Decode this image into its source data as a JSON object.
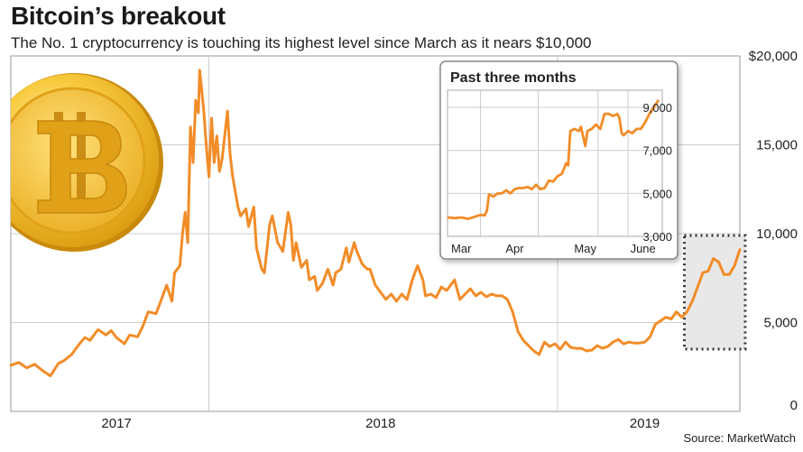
{
  "title": "Bitcoin’s breakout",
  "subtitle": "The No. 1 cryptocurrency is touching its highest level since March as it nears $10,000",
  "source": "Source: MarketWatch",
  "colors": {
    "line": "#f28c28",
    "grid": "#cccccc",
    "highlight": "#e8e8e8"
  },
  "icon": "bitcoin-coin-icon",
  "chart_data": [
    {
      "type": "line",
      "name": "Bitcoin price",
      "x_range": [
        2016.6,
        2019.36
      ],
      "ylim": [
        0,
        20000
      ],
      "y_ticks": [
        {
          "value": 0,
          "label": "0"
        },
        {
          "value": 5000,
          "label": "5,000"
        },
        {
          "value": 10000,
          "label": "10,000"
        },
        {
          "value": 15000,
          "label": "15,000"
        },
        {
          "value": 20000,
          "label": "$20,000"
        }
      ],
      "x_ticks": [
        {
          "value": 2017,
          "label": "2017"
        },
        {
          "value": 2018,
          "label": "2018"
        },
        {
          "value": 2019,
          "label": "2019"
        }
      ],
      "x_gridlines": [
        2017.35,
        2018.67
      ],
      "highlight": {
        "x": [
          2019.15,
          2019.36
        ],
        "y": [
          3500,
          9900
        ]
      },
      "points": [
        [
          2016.6,
          2600
        ],
        [
          2016.63,
          2750
        ],
        [
          2016.66,
          2450
        ],
        [
          2016.69,
          2650
        ],
        [
          2016.72,
          2300
        ],
        [
          2016.75,
          2000
        ],
        [
          2016.78,
          2700
        ],
        [
          2016.8,
          2850
        ],
        [
          2016.83,
          3200
        ],
        [
          2016.86,
          3800
        ],
        [
          2016.88,
          4150
        ],
        [
          2016.9,
          4000
        ],
        [
          2016.93,
          4600
        ],
        [
          2016.96,
          4300
        ],
        [
          2016.98,
          4550
        ],
        [
          2017.0,
          4150
        ],
        [
          2017.03,
          3800
        ],
        [
          2017.05,
          4300
        ],
        [
          2017.08,
          4200
        ],
        [
          2017.1,
          4800
        ],
        [
          2017.12,
          5600
        ],
        [
          2017.15,
          5500
        ],
        [
          2017.17,
          6300
        ],
        [
          2017.19,
          7100
        ],
        [
          2017.21,
          6200
        ],
        [
          2017.22,
          7800
        ],
        [
          2017.24,
          8200
        ],
        [
          2017.25,
          10000
        ],
        [
          2017.26,
          11200
        ],
        [
          2017.27,
          9500
        ],
        [
          2017.28,
          16000
        ],
        [
          2017.29,
          14000
        ],
        [
          2017.3,
          17500
        ],
        [
          2017.31,
          16800
        ],
        [
          2017.315,
          19200
        ],
        [
          2017.33,
          17000
        ],
        [
          2017.34,
          15000
        ],
        [
          2017.35,
          13200
        ],
        [
          2017.36,
          16500
        ],
        [
          2017.37,
          14000
        ],
        [
          2017.38,
          15500
        ],
        [
          2017.39,
          13500
        ],
        [
          2017.4,
          14200
        ],
        [
          2017.42,
          16900
        ],
        [
          2017.43,
          14500
        ],
        [
          2017.44,
          13200
        ],
        [
          2017.46,
          11500
        ],
        [
          2017.47,
          11000
        ],
        [
          2017.49,
          11400
        ],
        [
          2017.5,
          10400
        ],
        [
          2017.52,
          11500
        ],
        [
          2017.53,
          9200
        ],
        [
          2017.55,
          8000
        ],
        [
          2017.56,
          7800
        ],
        [
          2017.58,
          10500
        ],
        [
          2017.59,
          11000
        ],
        [
          2017.61,
          9500
        ],
        [
          2017.63,
          9000
        ],
        [
          2017.65,
          11200
        ],
        [
          2017.66,
          10500
        ],
        [
          2017.67,
          8500
        ],
        [
          2017.68,
          9500
        ],
        [
          2017.7,
          8100
        ],
        [
          2017.72,
          8500
        ],
        [
          2017.73,
          7400
        ],
        [
          2017.75,
          7600
        ],
        [
          2017.76,
          6800
        ],
        [
          2017.78,
          7200
        ],
        [
          2017.8,
          8000
        ],
        [
          2017.82,
          7100
        ],
        [
          2017.83,
          7800
        ],
        [
          2017.85,
          8000
        ],
        [
          2017.87,
          9200
        ],
        [
          2017.88,
          8400
        ],
        [
          2017.9,
          9500
        ],
        [
          2017.91,
          9000
        ],
        [
          2017.93,
          8300
        ],
        [
          2017.95,
          8000
        ],
        [
          2017.96,
          8000
        ],
        [
          2017.98,
          7100
        ],
        [
          2018.0,
          6700
        ],
        [
          2018.02,
          6300
        ],
        [
          2018.04,
          6600
        ],
        [
          2018.06,
          6200
        ],
        [
          2018.08,
          6600
        ],
        [
          2018.1,
          6300
        ],
        [
          2018.12,
          7400
        ],
        [
          2018.14,
          8200
        ],
        [
          2018.16,
          7400
        ],
        [
          2018.17,
          6500
        ],
        [
          2018.19,
          6600
        ],
        [
          2018.21,
          6400
        ],
        [
          2018.23,
          7000
        ],
        [
          2018.25,
          6800
        ],
        [
          2018.27,
          7200
        ],
        [
          2018.28,
          7400
        ],
        [
          2018.3,
          6300
        ],
        [
          2018.32,
          6600
        ],
        [
          2018.34,
          6900
        ],
        [
          2018.36,
          6500
        ],
        [
          2018.38,
          6700
        ],
        [
          2018.4,
          6450
        ],
        [
          2018.42,
          6600
        ],
        [
          2018.44,
          6500
        ],
        [
          2018.46,
          6500
        ],
        [
          2018.48,
          6300
        ],
        [
          2018.5,
          5600
        ],
        [
          2018.52,
          4500
        ],
        [
          2018.54,
          4000
        ],
        [
          2018.56,
          3700
        ],
        [
          2018.58,
          3400
        ],
        [
          2018.6,
          3200
        ],
        [
          2018.62,
          3900
        ],
        [
          2018.64,
          3650
        ],
        [
          2018.66,
          3800
        ],
        [
          2018.68,
          3500
        ],
        [
          2018.7,
          3900
        ],
        [
          2018.72,
          3600
        ],
        [
          2018.74,
          3550
        ],
        [
          2018.76,
          3550
        ],
        [
          2018.78,
          3400
        ],
        [
          2018.8,
          3450
        ],
        [
          2018.82,
          3700
        ],
        [
          2018.84,
          3550
        ],
        [
          2018.86,
          3650
        ],
        [
          2018.88,
          3900
        ],
        [
          2018.9,
          4050
        ],
        [
          2018.92,
          3800
        ],
        [
          2018.94,
          3900
        ],
        [
          2018.96,
          3850
        ],
        [
          2018.98,
          3850
        ],
        [
          2019.0,
          3900
        ],
        [
          2019.02,
          4200
        ],
        [
          2019.04,
          4900
        ],
        [
          2019.06,
          5100
        ],
        [
          2019.08,
          5300
        ],
        [
          2019.1,
          5200
        ],
        [
          2019.12,
          5600
        ],
        [
          2019.14,
          5300
        ],
        [
          2019.16,
          5600
        ],
        [
          2019.18,
          6200
        ],
        [
          2019.2,
          7000
        ],
        [
          2019.22,
          7800
        ],
        [
          2019.24,
          7900
        ],
        [
          2019.26,
          8600
        ],
        [
          2019.28,
          8400
        ],
        [
          2019.3,
          7700
        ],
        [
          2019.32,
          7700
        ],
        [
          2019.34,
          8200
        ],
        [
          2019.36,
          9100
        ]
      ]
    },
    {
      "type": "line",
      "title": "Past three months",
      "x_range": [
        0,
        100
      ],
      "ylim": [
        3000,
        9800
      ],
      "y_ticks": [
        {
          "value": 3000,
          "label": "3,000"
        },
        {
          "value": 5000,
          "label": "5,000"
        },
        {
          "value": 7000,
          "label": "7,000"
        },
        {
          "value": 9000,
          "label": "9,000"
        }
      ],
      "x_ticks": [
        {
          "value": 6,
          "label": "Mar"
        },
        {
          "value": 31,
          "label": "Apr"
        },
        {
          "value": 64,
          "label": "May"
        },
        {
          "value": 91,
          "label": "June"
        }
      ],
      "x_gridlines": [
        15,
        42,
        70,
        84
      ],
      "points": [
        [
          0,
          3880
        ],
        [
          3,
          3850
        ],
        [
          6,
          3880
        ],
        [
          9,
          3820
        ],
        [
          12,
          3900
        ],
        [
          15,
          4000
        ],
        [
          17,
          3980
        ],
        [
          18,
          4200
        ],
        [
          19,
          4950
        ],
        [
          21,
          4850
        ],
        [
          23,
          5000
        ],
        [
          25,
          5000
        ],
        [
          27,
          5150
        ],
        [
          29,
          5000
        ],
        [
          31,
          5200
        ],
        [
          33,
          5250
        ],
        [
          35,
          5250
        ],
        [
          37,
          5300
        ],
        [
          39,
          5200
        ],
        [
          41,
          5400
        ],
        [
          43,
          5200
        ],
        [
          45,
          5250
        ],
        [
          47,
          5600
        ],
        [
          49,
          5550
        ],
        [
          51,
          5800
        ],
        [
          53,
          5900
        ],
        [
          55,
          6400
        ],
        [
          56,
          6300
        ],
        [
          57,
          7900
        ],
        [
          59,
          8000
        ],
        [
          61,
          7900
        ],
        [
          62,
          8100
        ],
        [
          64,
          7200
        ],
        [
          65,
          7900
        ],
        [
          67,
          8000
        ],
        [
          69,
          8200
        ],
        [
          71,
          8000
        ],
        [
          73,
          8700
        ],
        [
          75,
          8700
        ],
        [
          77,
          8600
        ],
        [
          79,
          8700
        ],
        [
          80,
          8500
        ],
        [
          81,
          7800
        ],
        [
          82,
          7700
        ],
        [
          84,
          7900
        ],
        [
          86,
          7800
        ],
        [
          88,
          8000
        ],
        [
          90,
          8000
        ],
        [
          92,
          8300
        ],
        [
          94,
          8700
        ],
        [
          96,
          9000
        ],
        [
          98,
          9300
        ]
      ]
    }
  ]
}
